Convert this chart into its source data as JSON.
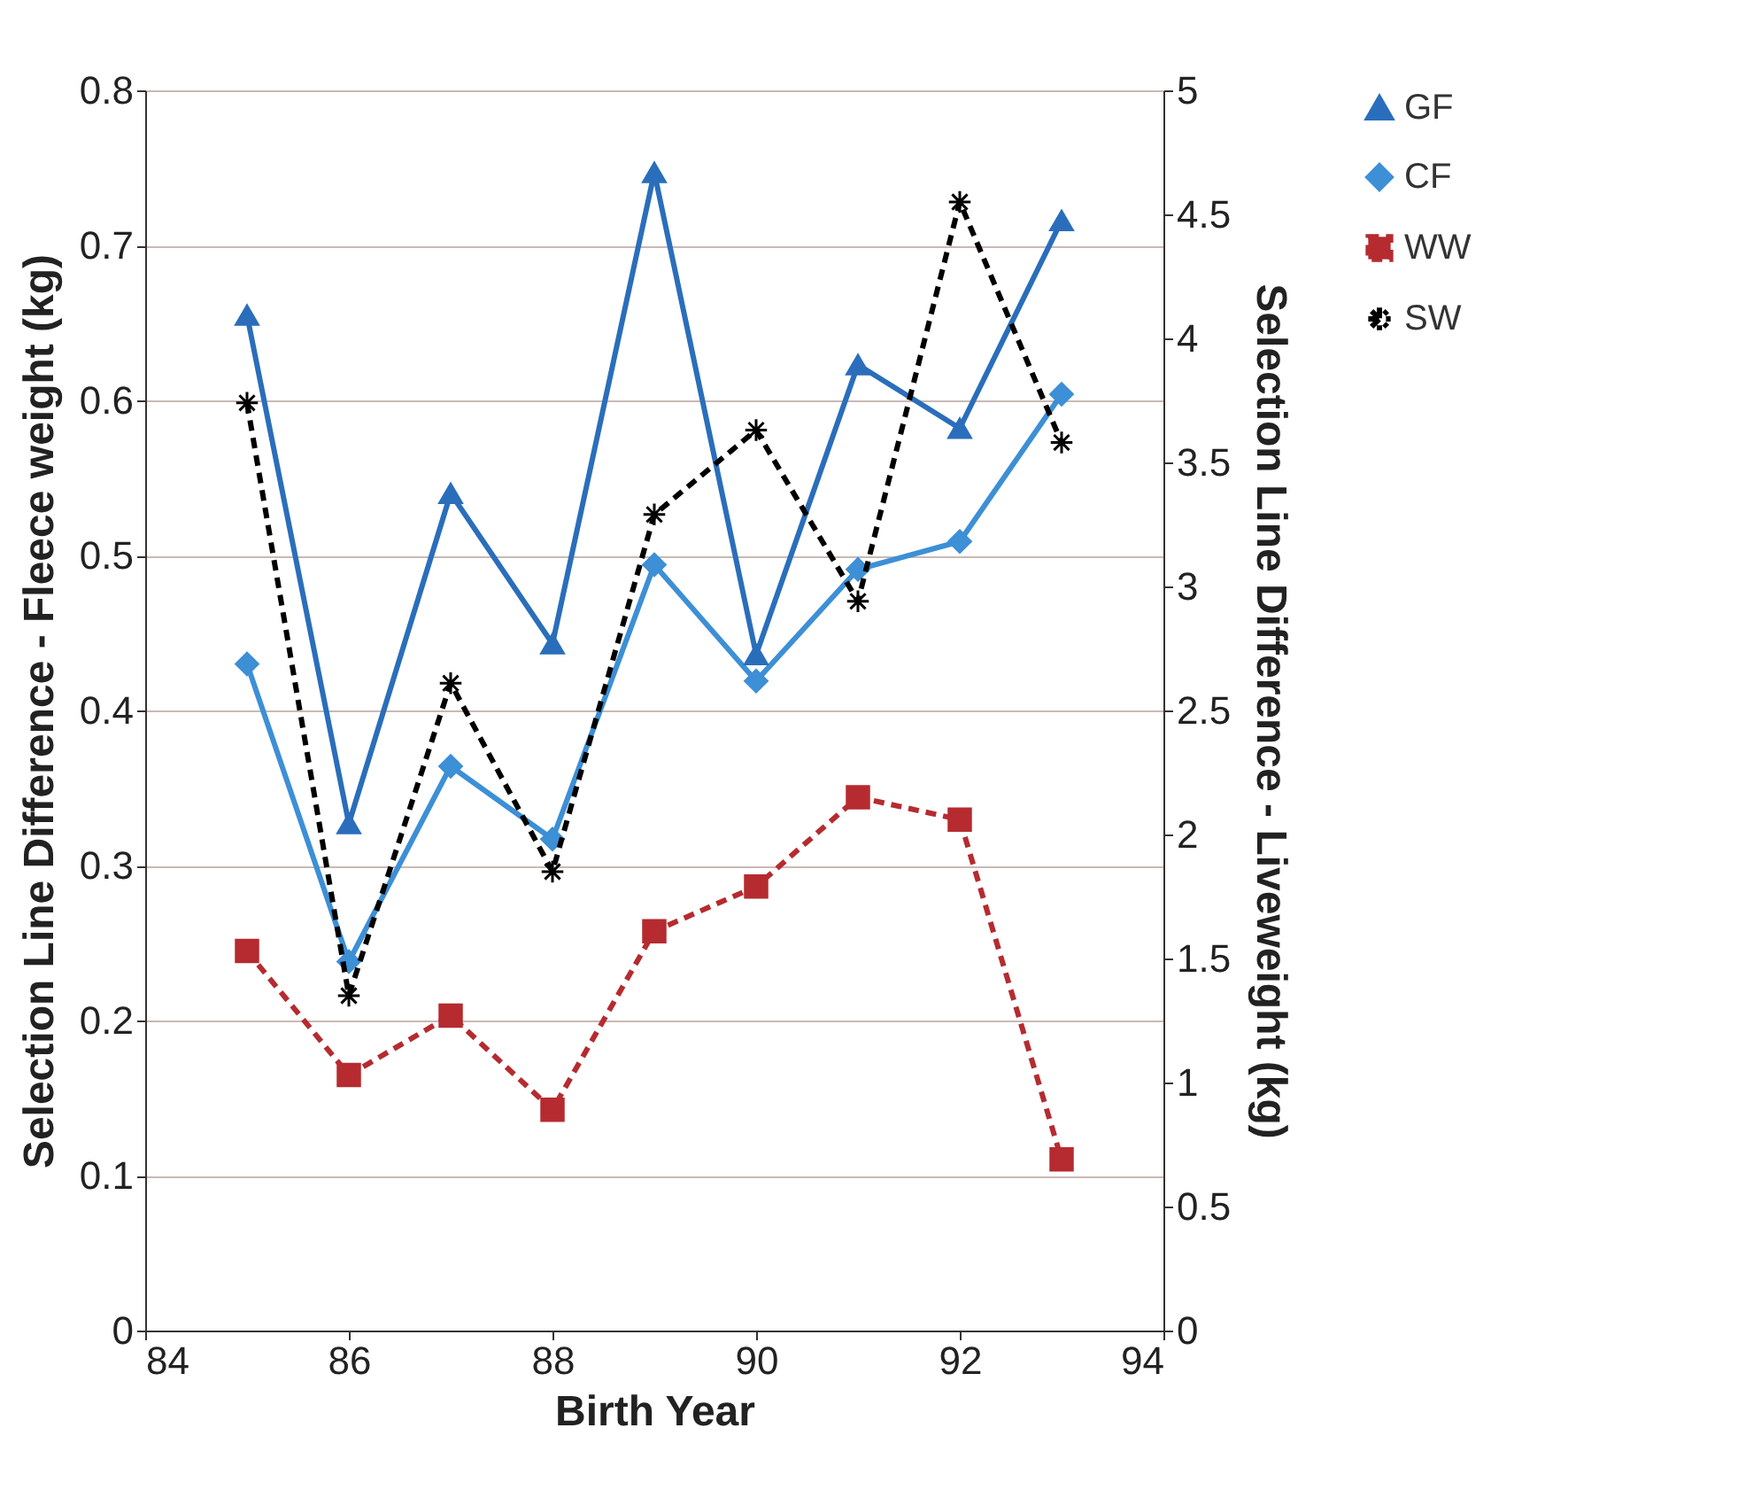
{
  "chart_data": {
    "type": "line",
    "xlabel": "Birth Year",
    "ylabel": "Selection Line Difference - Fleece weight (kg)",
    "y2label": "Selection Line Difference - Liveweight (kg)",
    "x": [
      85,
      86,
      87,
      88,
      89,
      90,
      91,
      92,
      93
    ],
    "series": [
      {
        "name": "GF",
        "color": "#2a6ebb",
        "marker": "triangle",
        "line_style": "solid",
        "values": [
          0.655,
          0.327,
          0.54,
          0.443,
          0.747,
          0.436,
          0.623,
          0.582,
          0.716
        ]
      },
      {
        "name": "CF",
        "color": "#3d8fd6",
        "marker": "diamond",
        "line_style": "solid",
        "values": [
          0.43,
          0.238,
          0.364,
          0.317,
          0.494,
          0.419,
          0.491,
          0.509,
          0.604
        ]
      },
      {
        "name": "WW",
        "color": "#b52b30",
        "marker": "square",
        "line_style": "dashed",
        "axis": "y2",
        "values": [
          1.53,
          1.03,
          1.27,
          0.89,
          1.61,
          1.79,
          2.15,
          2.06,
          0.69
        ]
      },
      {
        "name": "SW",
        "color": "#000000",
        "marker": "cross",
        "line_style": "dashed",
        "axis": "y2",
        "values": [
          3.74,
          1.35,
          2.61,
          1.85,
          3.29,
          3.63,
          2.94,
          4.55,
          3.58
        ]
      }
    ],
    "xlim": [
      84,
      94
    ],
    "xticks": [
      84,
      86,
      88,
      90,
      92,
      94
    ],
    "ylim": [
      0,
      0.8
    ],
    "yticks": [
      0,
      0.1,
      0.2,
      0.3,
      0.4,
      0.5,
      0.6,
      0.7,
      0.8
    ],
    "y2lim": [
      0,
      5
    ],
    "y2ticks": [
      0,
      0.5,
      1,
      1.5,
      2,
      2.5,
      3,
      3.5,
      4,
      4.5,
      5
    ],
    "grid": "y",
    "legend": "right"
  }
}
